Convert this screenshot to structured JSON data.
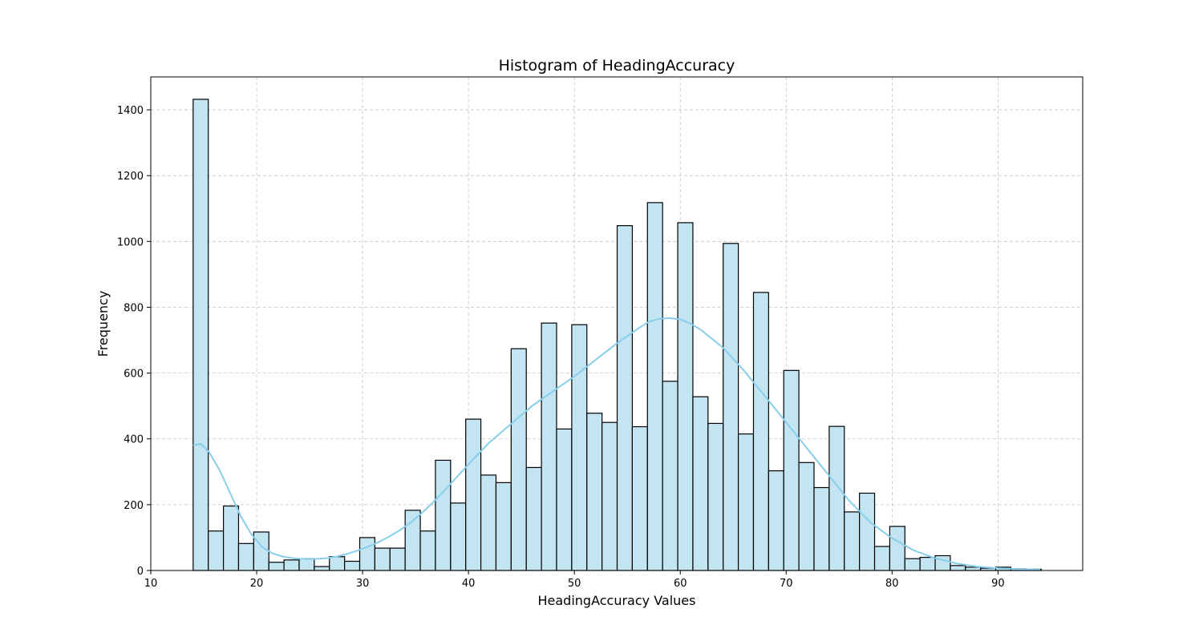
{
  "chart_data": {
    "type": "bar",
    "title": "Histogram of HeadingAccuracy",
    "xlabel": "HeadingAccuracy Values",
    "ylabel": "Frequency",
    "xlim": [
      10,
      98
    ],
    "ylim": [
      0,
      1500
    ],
    "xticks": [
      10,
      20,
      30,
      40,
      50,
      60,
      70,
      80,
      90
    ],
    "yticks": [
      0,
      200,
      400,
      600,
      800,
      1000,
      1200,
      1400
    ],
    "grid": true,
    "bar_fill": "#c3e5f2",
    "kde_color": "#87ceeb",
    "bin_start": 14,
    "bin_width": 1.43,
    "counts": [
      1432,
      120,
      196,
      82,
      117,
      25,
      32,
      36,
      12,
      42,
      28,
      100,
      68,
      68,
      183,
      120,
      335,
      205,
      460,
      290,
      267,
      674,
      313,
      752,
      430,
      747,
      478,
      450,
      1048,
      437,
      1118,
      575,
      1057,
      528,
      447,
      994,
      415,
      845,
      303,
      608,
      328,
      252,
      438,
      178,
      235,
      73,
      134,
      36,
      40,
      45,
      15,
      10,
      7,
      10,
      5,
      4
    ],
    "kde": {
      "x": [
        14,
        14.7,
        15.5,
        16.5,
        17.5,
        18.5,
        19.5,
        20.5,
        21.5,
        22.5,
        23.5,
        24.5,
        25.5,
        26.5,
        27.5,
        28.5,
        29.5,
        30.5,
        31.5,
        32.5,
        33.5,
        34.5,
        35.5,
        36.5,
        37.5,
        38.5,
        39.5,
        40.5,
        42,
        44,
        46,
        48,
        50,
        52,
        54,
        56,
        57,
        58,
        59,
        60,
        61,
        62,
        64,
        66,
        68,
        70,
        72,
        74,
        76,
        78,
        80,
        82,
        84,
        86,
        88,
        90,
        92,
        94
      ],
      "y": [
        380,
        385,
        360,
        305,
        235,
        165,
        110,
        72,
        52,
        42,
        37,
        35,
        35,
        37,
        42,
        50,
        60,
        72,
        86,
        103,
        122,
        145,
        172,
        202,
        235,
        270,
        305,
        340,
        390,
        445,
        500,
        545,
        590,
        640,
        690,
        735,
        755,
        765,
        767,
        763,
        750,
        730,
        678,
        608,
        530,
        450,
        370,
        290,
        210,
        145,
        98,
        62,
        38,
        22,
        12,
        7,
        4,
        3
      ]
    }
  }
}
